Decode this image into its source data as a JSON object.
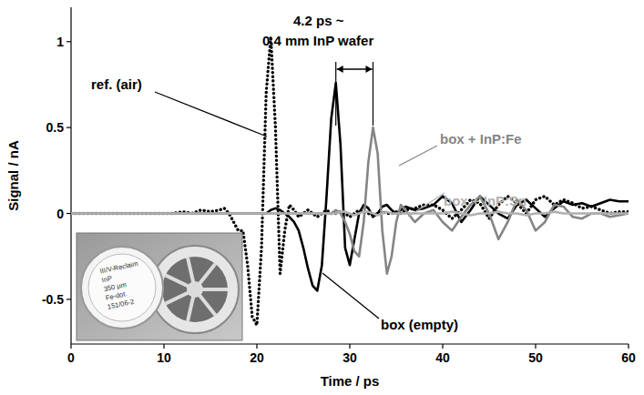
{
  "chart_data": {
    "type": "line",
    "x_label": "Time / ps",
    "y_label": "Signal / nA",
    "annotations": [
      "4.2 ps ~",
      "0.4 mm InP wafer"
    ],
    "inset_text": [
      "III/V-Reclaim",
      "InP",
      "350 µm",
      "Fe-dot.",
      "151/06-2"
    ],
    "xlim": [
      0,
      60
    ],
    "xticks": [
      0,
      10,
      20,
      30,
      40,
      50,
      60
    ],
    "ylim": [
      -0.76,
      1.2
    ],
    "yticks": [
      -0.5,
      0,
      0.5,
      1
    ],
    "grid": false,
    "x": [
      0,
      1,
      2,
      3,
      4,
      5,
      6,
      7,
      8,
      9,
      10,
      11,
      12,
      13,
      14,
      15,
      16,
      16.5,
      17,
      17.5,
      18,
      18.5,
      19,
      19.5,
      20,
      20.5,
      21,
      21.5,
      22,
      22.5,
      23,
      23.5,
      24,
      24.5,
      25,
      25.5,
      26,
      26.5,
      27,
      27.5,
      28,
      28.5,
      29,
      29.5,
      30,
      30.5,
      31,
      31.5,
      32,
      32.5,
      33,
      33.5,
      34,
      34.5,
      35,
      35.5,
      36,
      37,
      38,
      39,
      40,
      41,
      42,
      43,
      44,
      45,
      46,
      47,
      48,
      49,
      50,
      51,
      52,
      53,
      54,
      55,
      56,
      57,
      58,
      59,
      60
    ],
    "series": [
      {
        "name": "ref. (air)",
        "color": "#000000",
        "line_style": "dotted",
        "values": [
          0,
          0,
          0,
          0,
          0,
          0,
          0,
          0,
          0,
          0,
          0,
          0,
          0.01,
          0,
          0.02,
          0.01,
          0.02,
          0.03,
          0,
          -0.05,
          -0.1,
          -0.1,
          -0.3,
          -0.6,
          -0.65,
          -0.2,
          0.7,
          1.03,
          0.5,
          -0.35,
          -0.1,
          0.05,
          0.02,
          -0.02,
          0,
          0.02,
          0,
          -0.02,
          0,
          0.02,
          0,
          0,
          0.01,
          0,
          -0.02,
          0,
          0.02,
          0.01,
          0,
          -0.01,
          0,
          0.01,
          0,
          0,
          0.01,
          0,
          0.02,
          0.03,
          0.05,
          0.05,
          0.02,
          -0.03,
          0.02,
          0.08,
          0.06,
          -0.03,
          0.05,
          0.1,
          0.06,
          0,
          0.08,
          0.1,
          0.05,
          0.08,
          0.06,
          0.03,
          0.04,
          0.02,
          0,
          0.01,
          0.01
        ]
      },
      {
        "name": "box (empty)",
        "color": "#000000",
        "line_style": "solid",
        "values": [
          0,
          0,
          0,
          0,
          0,
          0,
          0,
          0,
          0,
          0,
          0,
          0,
          0,
          0,
          0,
          0,
          0,
          0,
          0,
          0,
          0,
          0,
          0,
          0,
          0,
          0,
          0,
          0.02,
          0.03,
          0.02,
          0,
          -0.02,
          -0.05,
          -0.1,
          -0.2,
          -0.32,
          -0.42,
          -0.45,
          -0.3,
          0.1,
          0.55,
          0.76,
          0.4,
          -0.2,
          -0.3,
          -0.15,
          0,
          0.05,
          0.03,
          -0.02,
          0,
          0.04,
          0.05,
          0.02,
          0,
          0.02,
          0.04,
          0.02,
          0.03,
          0.05,
          0.1,
          0.06,
          -0.05,
          0.02,
          0.1,
          0.05,
          0,
          -0.03,
          0.05,
          0.08,
          0.03,
          -0.02,
          0.03,
          0.07,
          0.05,
          0.06,
          0.04,
          0.06,
          0.08,
          0.07,
          0.07
        ]
      },
      {
        "name": "box + InP:Fe",
        "color": "#858585",
        "line_style": "solid",
        "values": [
          0,
          0,
          0,
          0,
          0,
          0,
          0,
          0,
          0,
          0,
          0,
          0,
          0,
          0,
          0,
          0,
          0,
          0,
          0,
          0,
          0,
          0,
          0,
          0,
          0,
          0,
          0,
          0,
          0,
          0,
          0,
          0,
          0,
          0,
          0,
          0,
          0,
          0,
          0,
          0,
          0,
          0.02,
          0,
          -0.05,
          -0.12,
          -0.22,
          -0.25,
          -0.05,
          0.3,
          0.5,
          0.35,
          -0.1,
          -0.35,
          -0.25,
          -0.05,
          0.05,
          0.02,
          -0.05,
          0,
          0.02,
          -0.05,
          -0.1,
          -0.02,
          0.05,
          0.1,
          0,
          -0.15,
          -0.05,
          0.08,
          0.02,
          -0.1,
          -0.05,
          0.05,
          0.04,
          -0.02,
          -0.03,
          0,
          0,
          -0.02,
          -0.01,
          0
        ]
      },
      {
        "name": "box + InP:Sn",
        "color": "#b0b0b0",
        "line_style": "solid",
        "values": [
          0,
          0,
          0,
          0,
          0,
          0,
          0,
          0,
          0,
          0,
          0,
          0,
          0,
          0,
          0,
          0,
          0,
          0,
          0,
          0,
          0,
          0,
          0,
          0,
          0,
          0,
          0,
          0,
          0,
          0,
          0,
          0,
          0,
          0,
          0,
          0,
          0,
          0,
          0,
          0,
          0,
          0,
          0.01,
          0.01,
          0,
          -0.01,
          0,
          0.01,
          0.01,
          0,
          -0.01,
          0,
          0.01,
          0,
          0,
          0,
          0,
          0,
          0,
          0,
          0,
          0.01,
          0,
          -0.01,
          0,
          0,
          0.01,
          0,
          0,
          -0.01,
          0,
          0,
          0.01,
          0,
          0,
          0,
          0,
          0,
          0,
          0,
          0
        ]
      }
    ]
  }
}
